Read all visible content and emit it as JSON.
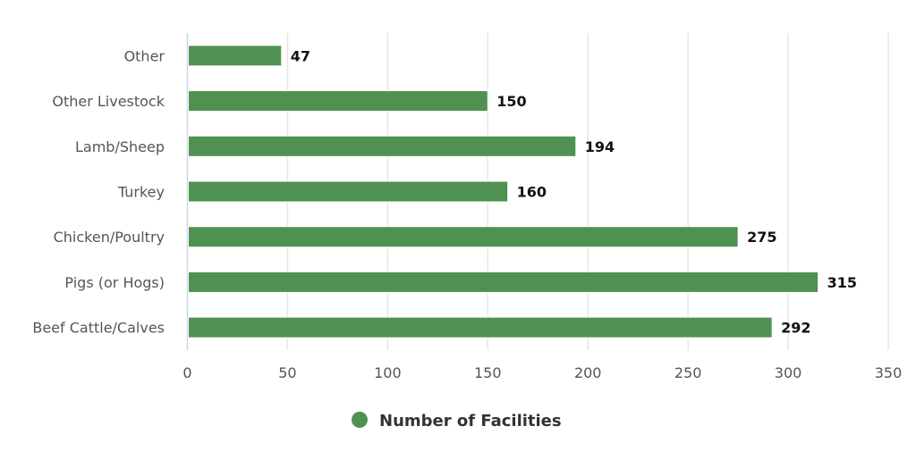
{
  "chart_data": {
    "type": "bar",
    "orientation": "horizontal",
    "categories": [
      "Other",
      "Other Livestock",
      "Lamb/Sheep",
      "Turkey",
      "Chicken/Poultry",
      "Pigs (or Hogs)",
      "Beef Cattle/Calves"
    ],
    "series": [
      {
        "name": "Number of Facilities",
        "values": [
          47,
          150,
          194,
          160,
          275,
          315,
          292
        ],
        "color": "#4f9150"
      }
    ],
    "xlim": [
      0,
      350
    ],
    "xticks": [
      0,
      50,
      100,
      150,
      200,
      250,
      300,
      350
    ],
    "grid": true,
    "data_labels": true,
    "legend_position": "bottom-center",
    "title": "",
    "xlabel": "",
    "ylabel": ""
  }
}
